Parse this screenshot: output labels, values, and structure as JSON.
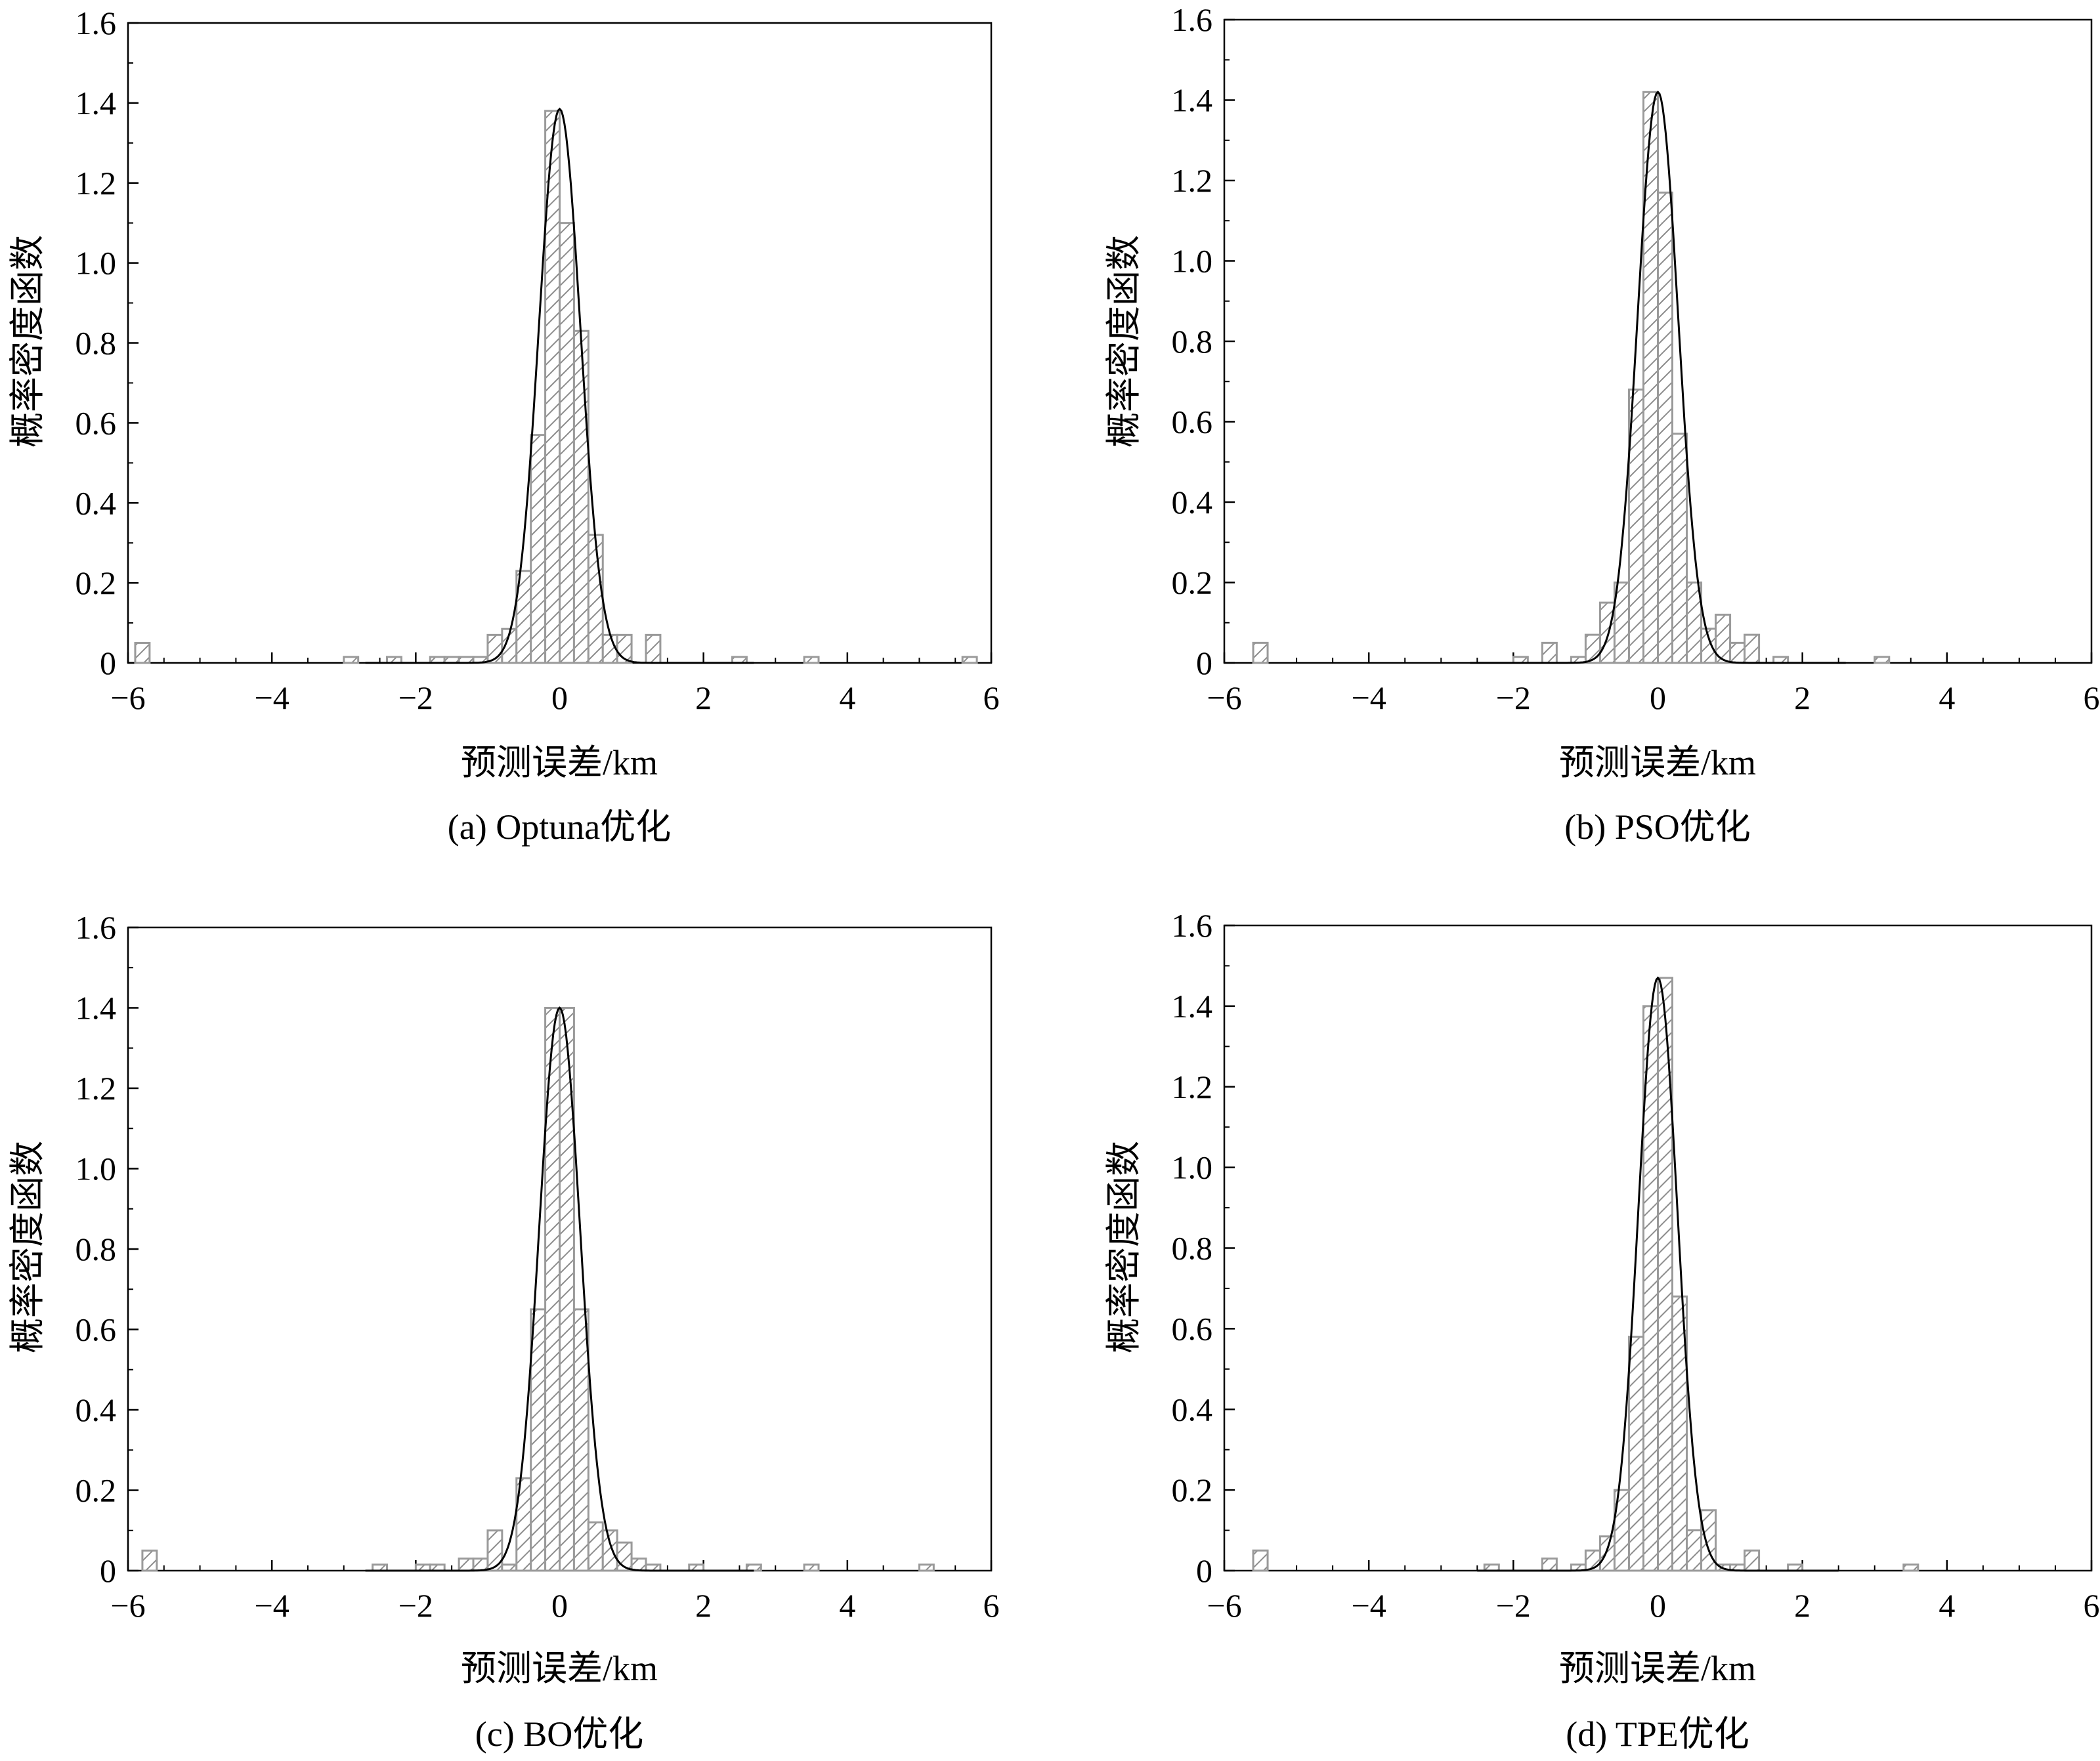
{
  "figure": {
    "panels": [
      {
        "caption": "(a) Optuna优化"
      },
      {
        "caption": "(b) PSO优化"
      },
      {
        "caption": "(c) BO优化"
      },
      {
        "caption": "(d) TPE优化"
      }
    ]
  },
  "chart_data": [
    {
      "type": "bar",
      "title": "",
      "caption": "(a) Optuna优化",
      "xlabel": "预测误差/km",
      "ylabel": "概率密度函数",
      "xlim": [
        -6,
        6
      ],
      "ylim": [
        0,
        1.6
      ],
      "xticks": [
        "−6",
        "−4",
        "−2",
        "0",
        "2",
        "4",
        "6"
      ],
      "yticks": [
        "0",
        "0.2",
        "0.4",
        "0.6",
        "0.8",
        "1.0",
        "1.2",
        "1.4",
        "1.6"
      ],
      "bin_width": 0.2,
      "histogram": [
        {
          "x": -5.8,
          "y": 0.05
        },
        {
          "x": -2.9,
          "y": 0.015
        },
        {
          "x": -2.3,
          "y": 0.015
        },
        {
          "x": -1.7,
          "y": 0.015
        },
        {
          "x": -1.5,
          "y": 0.015
        },
        {
          "x": -1.3,
          "y": 0.015
        },
        {
          "x": -1.1,
          "y": 0.015
        },
        {
          "x": -0.9,
          "y": 0.07
        },
        {
          "x": -0.7,
          "y": 0.085
        },
        {
          "x": -0.5,
          "y": 0.23
        },
        {
          "x": -0.3,
          "y": 0.57
        },
        {
          "x": -0.1,
          "y": 1.38
        },
        {
          "x": 0.1,
          "y": 1.1
        },
        {
          "x": 0.3,
          "y": 0.83
        },
        {
          "x": 0.5,
          "y": 0.32
        },
        {
          "x": 0.7,
          "y": 0.07
        },
        {
          "x": 0.9,
          "y": 0.07
        },
        {
          "x": 1.3,
          "y": 0.07
        },
        {
          "x": 2.5,
          "y": 0.015
        },
        {
          "x": 3.5,
          "y": 0.015
        },
        {
          "x": 5.7,
          "y": 0.015
        }
      ],
      "pdf_curve": {
        "mean": 0.0,
        "peak": 1.385,
        "xrange": [
          -2.7,
          2.7
        ]
      }
    },
    {
      "type": "bar",
      "title": "",
      "caption": "(b) PSO优化",
      "xlabel": "预测误差/km",
      "ylabel": "概率密度函数",
      "xlim": [
        -6,
        6
      ],
      "ylim": [
        0,
        1.6
      ],
      "xticks": [
        "−6",
        "−4",
        "−2",
        "0",
        "2",
        "4",
        "6"
      ],
      "yticks": [
        "0",
        "0.2",
        "0.4",
        "0.6",
        "0.8",
        "1.0",
        "1.2",
        "1.4",
        "1.6"
      ],
      "bin_width": 0.2,
      "histogram": [
        {
          "x": -5.5,
          "y": 0.05
        },
        {
          "x": -1.9,
          "y": 0.015
        },
        {
          "x": -1.5,
          "y": 0.05
        },
        {
          "x": -1.1,
          "y": 0.015
        },
        {
          "x": -0.9,
          "y": 0.07
        },
        {
          "x": -0.7,
          "y": 0.15
        },
        {
          "x": -0.5,
          "y": 0.2
        },
        {
          "x": -0.3,
          "y": 0.68
        },
        {
          "x": -0.1,
          "y": 1.42
        },
        {
          "x": 0.1,
          "y": 1.17
        },
        {
          "x": 0.3,
          "y": 0.57
        },
        {
          "x": 0.5,
          "y": 0.2
        },
        {
          "x": 0.7,
          "y": 0.085
        },
        {
          "x": 0.9,
          "y": 0.12
        },
        {
          "x": 1.1,
          "y": 0.05
        },
        {
          "x": 1.3,
          "y": 0.07
        },
        {
          "x": 1.7,
          "y": 0.015
        },
        {
          "x": 3.1,
          "y": 0.015
        }
      ],
      "pdf_curve": {
        "mean": 0.0,
        "peak": 1.42,
        "xrange": [
          -2.6,
          2.6
        ]
      }
    },
    {
      "type": "bar",
      "title": "",
      "caption": "(c) BO优化",
      "xlabel": "预测误差/km",
      "ylabel": "概率密度函数",
      "xlim": [
        -6,
        6
      ],
      "ylim": [
        0,
        1.6
      ],
      "xticks": [
        "−6",
        "−4",
        "−2",
        "0",
        "2",
        "4",
        "6"
      ],
      "yticks": [
        "0",
        "0.2",
        "0.4",
        "0.6",
        "0.8",
        "1.0",
        "1.2",
        "1.4",
        "1.6"
      ],
      "bin_width": 0.2,
      "histogram": [
        {
          "x": -5.7,
          "y": 0.05
        },
        {
          "x": -2.5,
          "y": 0.015
        },
        {
          "x": -1.9,
          "y": 0.015
        },
        {
          "x": -1.7,
          "y": 0.015
        },
        {
          "x": -1.3,
          "y": 0.03
        },
        {
          "x": -1.1,
          "y": 0.03
        },
        {
          "x": -0.9,
          "y": 0.1
        },
        {
          "x": -0.7,
          "y": 0.015
        },
        {
          "x": -0.5,
          "y": 0.23
        },
        {
          "x": -0.3,
          "y": 0.65
        },
        {
          "x": -0.1,
          "y": 1.4
        },
        {
          "x": 0.1,
          "y": 1.4
        },
        {
          "x": 0.3,
          "y": 0.65
        },
        {
          "x": 0.5,
          "y": 0.12
        },
        {
          "x": 0.7,
          "y": 0.1
        },
        {
          "x": 0.9,
          "y": 0.07
        },
        {
          "x": 1.1,
          "y": 0.03
        },
        {
          "x": 1.3,
          "y": 0.015
        },
        {
          "x": 1.9,
          "y": 0.015
        },
        {
          "x": 2.7,
          "y": 0.015
        },
        {
          "x": 3.5,
          "y": 0.015
        },
        {
          "x": 5.1,
          "y": 0.015
        }
      ],
      "pdf_curve": {
        "mean": 0.0,
        "peak": 1.4,
        "xrange": [
          -2.7,
          2.7
        ]
      }
    },
    {
      "type": "bar",
      "title": "",
      "caption": "(d) TPE优化",
      "xlabel": "预测误差/km",
      "ylabel": "概率密度函数",
      "xlim": [
        -6,
        6
      ],
      "ylim": [
        0,
        1.6
      ],
      "xticks": [
        "−6",
        "−4",
        "−2",
        "0",
        "2",
        "4",
        "6"
      ],
      "yticks": [
        "0",
        "0.2",
        "0.4",
        "0.6",
        "0.8",
        "1.0",
        "1.2",
        "1.4",
        "1.6"
      ],
      "bin_width": 0.2,
      "histogram": [
        {
          "x": -5.5,
          "y": 0.05
        },
        {
          "x": -2.3,
          "y": 0.015
        },
        {
          "x": -1.5,
          "y": 0.03
        },
        {
          "x": -1.1,
          "y": 0.015
        },
        {
          "x": -0.9,
          "y": 0.05
        },
        {
          "x": -0.7,
          "y": 0.085
        },
        {
          "x": -0.5,
          "y": 0.2
        },
        {
          "x": -0.3,
          "y": 0.58
        },
        {
          "x": -0.1,
          "y": 1.4
        },
        {
          "x": 0.1,
          "y": 1.47
        },
        {
          "x": 0.3,
          "y": 0.68
        },
        {
          "x": 0.5,
          "y": 0.1
        },
        {
          "x": 0.7,
          "y": 0.15
        },
        {
          "x": 0.9,
          "y": 0.015
        },
        {
          "x": 1.1,
          "y": 0.015
        },
        {
          "x": 1.3,
          "y": 0.05
        },
        {
          "x": 1.9,
          "y": 0.015
        },
        {
          "x": 3.5,
          "y": 0.015
        }
      ],
      "pdf_curve": {
        "mean": 0.0,
        "peak": 1.47,
        "xrange": [
          -2.5,
          2.5
        ]
      }
    }
  ]
}
